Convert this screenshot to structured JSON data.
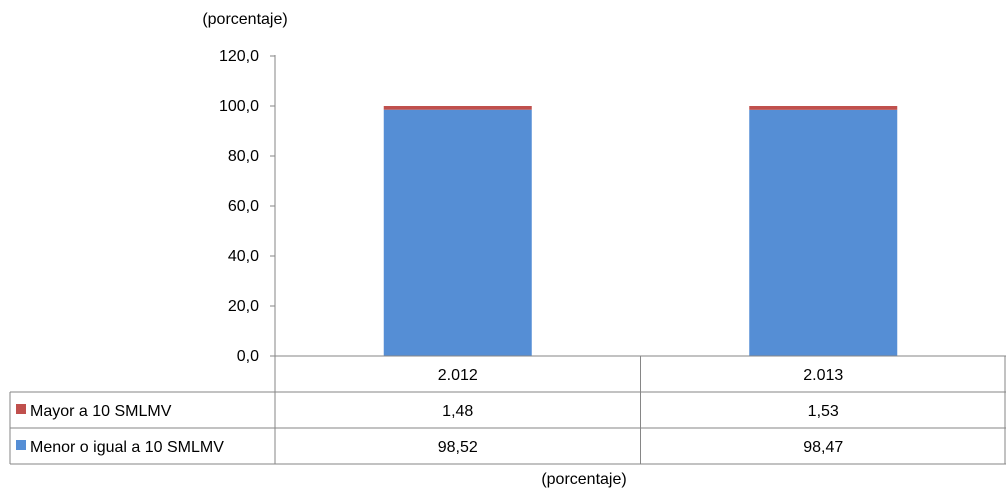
{
  "chart_data": {
    "type": "bar",
    "stacked": true,
    "title": "(porcentaje)",
    "xlabel": "(porcentaje)",
    "ylabel": "",
    "ylim": [
      0,
      120
    ],
    "y_ticks": [
      0,
      20,
      40,
      60,
      80,
      100,
      120
    ],
    "y_tick_labels": [
      "0,0",
      "20,0",
      "40,0",
      "60,0",
      "80,0",
      "100,0",
      "120,0"
    ],
    "categories": [
      "2.012",
      "2.013"
    ],
    "grid": false,
    "legend": "data-table-left",
    "series": [
      {
        "name": "Menor o igual a 10 SMLMV",
        "values": [
          98.52,
          98.47
        ],
        "labels": [
          "98,52",
          "98,47"
        ],
        "color": "#558ED5"
      },
      {
        "name": "Mayor a 10 SMLMV",
        "values": [
          1.48,
          1.53
        ],
        "labels": [
          "1,48",
          "1,53"
        ],
        "color": "#C0504D"
      }
    ],
    "table_rows_order": [
      1,
      0
    ]
  }
}
